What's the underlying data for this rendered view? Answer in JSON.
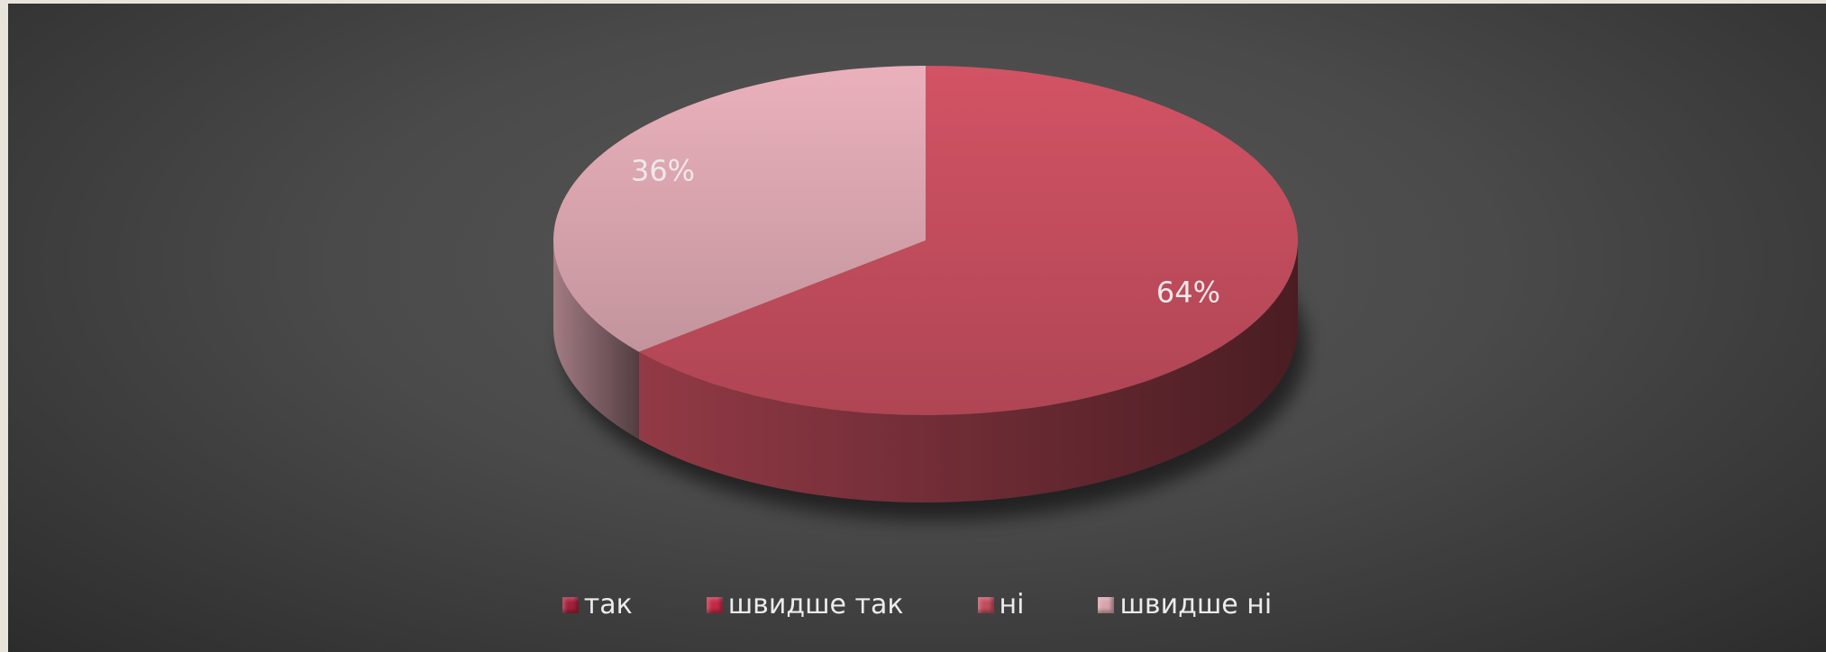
{
  "chart_data": {
    "type": "pie3d",
    "categories": [
      "так",
      "швидше так",
      "ні",
      "швидше ні"
    ],
    "values": [
      0,
      0,
      64,
      36
    ],
    "value_labels": [
      null,
      null,
      "64%",
      "36%"
    ],
    "colors": [
      "#a3203a",
      "#c42a45",
      "#c24d5d",
      "#d9a4ae"
    ],
    "legend": "bottom"
  }
}
